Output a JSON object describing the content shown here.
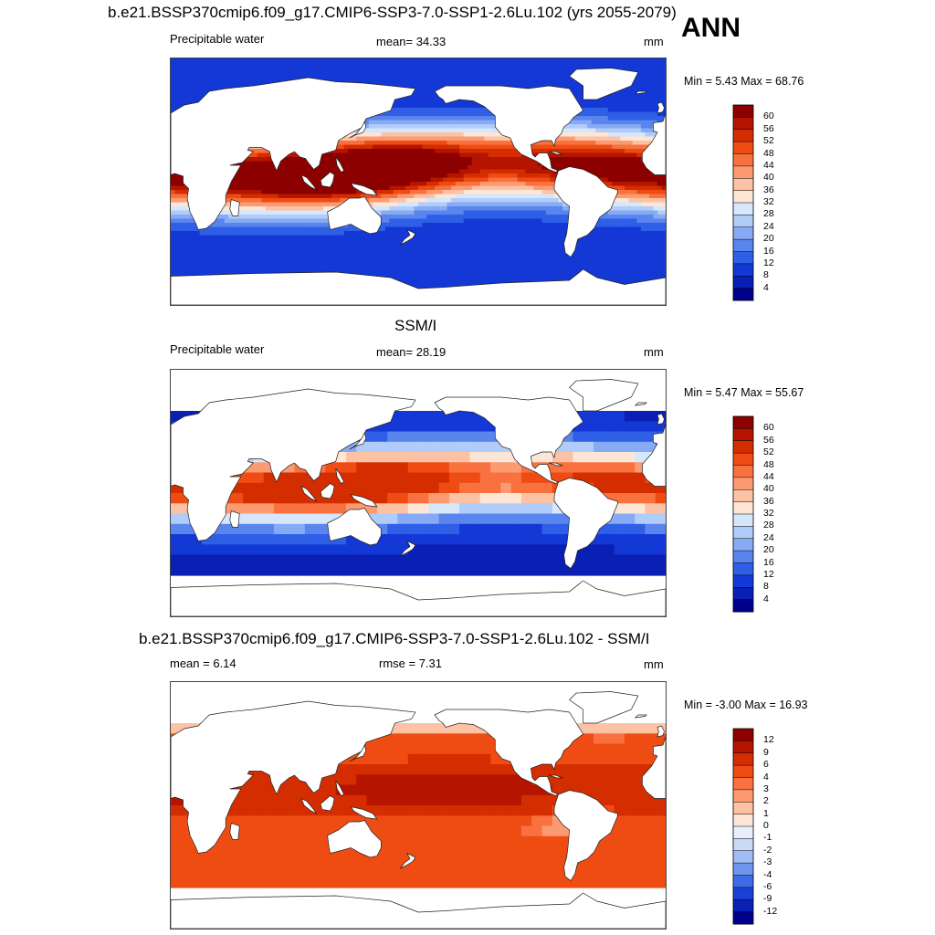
{
  "figure": {
    "title": "b.e21.BSSP370cmip6.f09_g17.CMIP6-SSP3-7.0-SSP1-2.6Lu.102 (yrs 2055-2079)",
    "season": "ANN"
  },
  "panels": [
    {
      "id": "model",
      "subtitle": "",
      "left_label": "Precipitable water",
      "center_label": "mean=  34.33",
      "units": "mm",
      "minmax": "Min =   5.43 Max =  68.76",
      "mask_land_coarse": false,
      "colorbar": {
        "levels": [
          "60",
          "56",
          "52",
          "48",
          "44",
          "40",
          "36",
          "32",
          "28",
          "24",
          "20",
          "16",
          "12",
          "8",
          "4"
        ],
        "colors": [
          "#8c0000",
          "#b41400",
          "#d42d00",
          "#ef4c14",
          "#f8713f",
          "#fc9a72",
          "#fdc2a3",
          "#fde6d6",
          "#d6e6fb",
          "#b0ccf8",
          "#86aaf4",
          "#5a85ee",
          "#2f5fe6",
          "#1338d6",
          "#0a1fb4",
          "#00008c"
        ]
      }
    },
    {
      "id": "obs",
      "subtitle": "SSM/I",
      "left_label": "Precipitable water",
      "center_label": "mean=  28.19",
      "units": "mm",
      "minmax": "Min =   5.47 Max =  55.67",
      "mask_land_coarse": true,
      "colorbar": {
        "levels": [
          "60",
          "56",
          "52",
          "48",
          "44",
          "40",
          "36",
          "32",
          "28",
          "24",
          "20",
          "16",
          "12",
          "8",
          "4"
        ],
        "colors": [
          "#8c0000",
          "#b41400",
          "#d42d00",
          "#ef4c14",
          "#f8713f",
          "#fc9a72",
          "#fdc2a3",
          "#fde6d6",
          "#d6e6fb",
          "#b0ccf8",
          "#86aaf4",
          "#5a85ee",
          "#2f5fe6",
          "#1338d6",
          "#0a1fb4",
          "#00008c"
        ]
      }
    },
    {
      "id": "diff",
      "subtitle": "b.e21.BSSP370cmip6.f09_g17.CMIP6-SSP3-7.0-SSP1-2.6Lu.102 - SSM/I",
      "left_label": "mean =   6.14",
      "center_label": "rmse =   7.31",
      "units": "mm",
      "minmax": "Min =  -3.00 Max =  16.93",
      "mask_land_coarse": true,
      "colorbar": {
        "levels": [
          "12",
          "9",
          "6",
          "4",
          "3",
          "2",
          "1",
          "0",
          "-1",
          "-2",
          "-3",
          "-4",
          "-6",
          "-9",
          "-12"
        ],
        "colors": [
          "#8c0000",
          "#b41400",
          "#d42d00",
          "#ef4c14",
          "#f8713f",
          "#fc9a72",
          "#fdc2a3",
          "#fde6d6",
          "#e8eefb",
          "#c9d9f8",
          "#9fbcf5",
          "#6e96ef",
          "#3f6ce6",
          "#1a40d6",
          "#0a1fb4",
          "#00008c"
        ]
      }
    }
  ]
}
